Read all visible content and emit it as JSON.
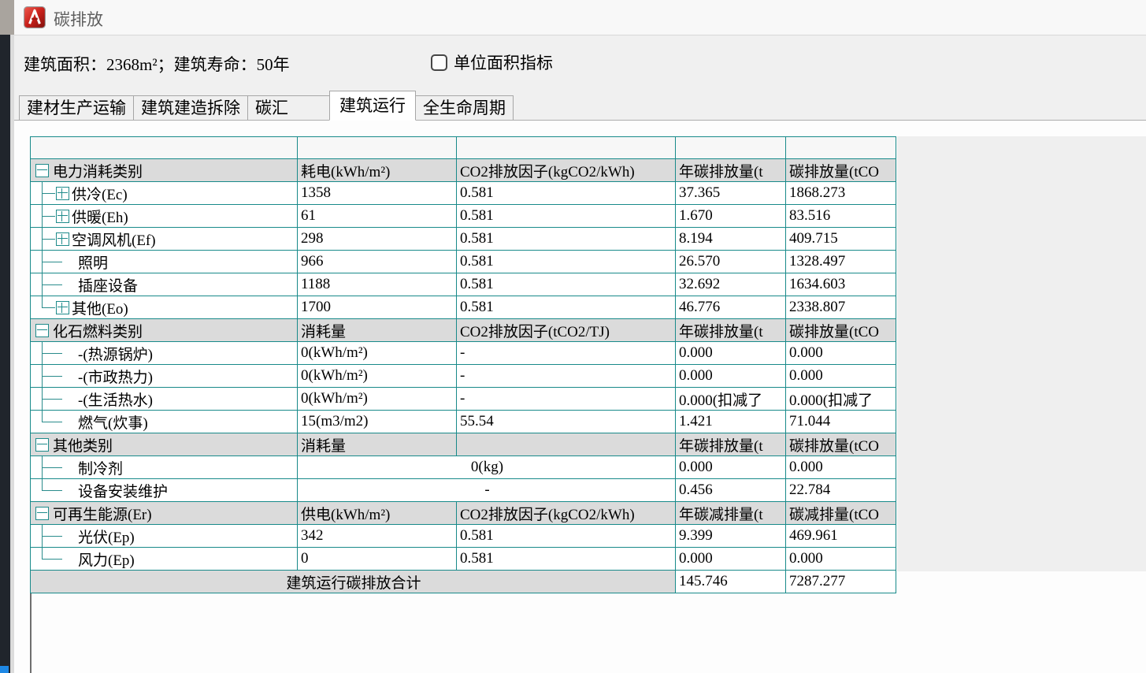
{
  "window": {
    "title": "碳排放"
  },
  "info": {
    "text": "建筑面积：2368m²；建筑寿命：50年",
    "checkbox_label": "单位面积指标",
    "checkbox_checked": false
  },
  "tabs": [
    {
      "label": "建材生产运输",
      "active": false
    },
    {
      "label": "建筑建造拆除",
      "active": false
    },
    {
      "label": "碳汇",
      "active": false
    },
    {
      "label": "建筑运行",
      "active": true
    },
    {
      "label": "全生命周期",
      "active": false
    }
  ],
  "table": {
    "sections": [
      {
        "header": {
          "label": "电力消耗类别",
          "cols": [
            "耗电(kWh/m²)",
            "CO2排放因子(kgCO2/kWh)",
            "年碳排放量(t",
            "碳排放量(tCO"
          ]
        },
        "rows": [
          {
            "label": "供冷(Ec)",
            "expand": true,
            "last": false,
            "cells": [
              "1358",
              "0.581",
              "37.365",
              "1868.273"
            ]
          },
          {
            "label": "供暖(Eh)",
            "expand": true,
            "last": false,
            "cells": [
              "61",
              "0.581",
              "1.670",
              "83.516"
            ]
          },
          {
            "label": "空调风机(Ef)",
            "expand": true,
            "last": false,
            "cells": [
              "298",
              "0.581",
              "8.194",
              "409.715"
            ]
          },
          {
            "label": "照明",
            "expand": false,
            "last": false,
            "cells": [
              "966",
              "0.581",
              "26.570",
              "1328.497"
            ]
          },
          {
            "label": "插座设备",
            "expand": false,
            "last": false,
            "cells": [
              "1188",
              "0.581",
              "32.692",
              "1634.603"
            ]
          },
          {
            "label": "其他(Eo)",
            "expand": true,
            "last": true,
            "cells": [
              "1700",
              "0.581",
              "46.776",
              "2338.807"
            ]
          }
        ]
      },
      {
        "header": {
          "label": "化石燃料类别",
          "cols": [
            "消耗量",
            "CO2排放因子(tCO2/TJ)",
            "年碳排放量(t",
            "碳排放量(tCO"
          ]
        },
        "rows": [
          {
            "label": "-(热源锅炉)",
            "expand": false,
            "last": false,
            "cells": [
              "0(kWh/m²)",
              "-",
              "0.000",
              "0.000"
            ]
          },
          {
            "label": "-(市政热力)",
            "expand": false,
            "last": false,
            "cells": [
              "0(kWh/m²)",
              "-",
              "0.000",
              "0.000"
            ]
          },
          {
            "label": "-(生活热水)",
            "expand": false,
            "last": false,
            "cells": [
              "0(kWh/m²)",
              "-",
              "0.000(扣减了",
              "0.000(扣减了"
            ]
          },
          {
            "label": "燃气(炊事)",
            "expand": false,
            "last": true,
            "cells": [
              "15(m3/m2)",
              "55.54",
              "1.421",
              "71.044"
            ]
          }
        ]
      },
      {
        "header": {
          "label": "其他类别",
          "cols": [
            "消耗量",
            "",
            "年碳排放量(t",
            "碳排放量(tCO"
          ]
        },
        "rows": [
          {
            "label": "制冷剂",
            "expand": false,
            "last": false,
            "merged": "0(kg)",
            "cells": [
              "0.000",
              "0.000"
            ]
          },
          {
            "label": "设备安装维护",
            "expand": false,
            "last": true,
            "merged": "-",
            "cells": [
              "0.456",
              "22.784"
            ]
          }
        ]
      },
      {
        "header": {
          "label": "可再生能源(Er)",
          "cols": [
            "供电(kWh/m²)",
            "CO2排放因子(kgCO2/kWh)",
            "年碳减排量(t",
            "碳减排量(tCO"
          ]
        },
        "rows": [
          {
            "label": "光伏(Ep)",
            "expand": false,
            "last": false,
            "cells": [
              "342",
              "0.581",
              "9.399",
              "469.961"
            ]
          },
          {
            "label": "风力(Ep)",
            "expand": false,
            "last": true,
            "cells": [
              "0",
              "0.581",
              "0.000",
              "0.000"
            ]
          }
        ]
      }
    ],
    "total": {
      "label": "建筑运行碳排放合计",
      "annual": "145.746",
      "lifetime": "7287.277"
    }
  },
  "colors": {
    "grid_line": "#188a8a",
    "section_header_bg": "#dbdbdb",
    "app_icon_red": "#c8201a",
    "dialog_bg": "#f0f0f0"
  }
}
